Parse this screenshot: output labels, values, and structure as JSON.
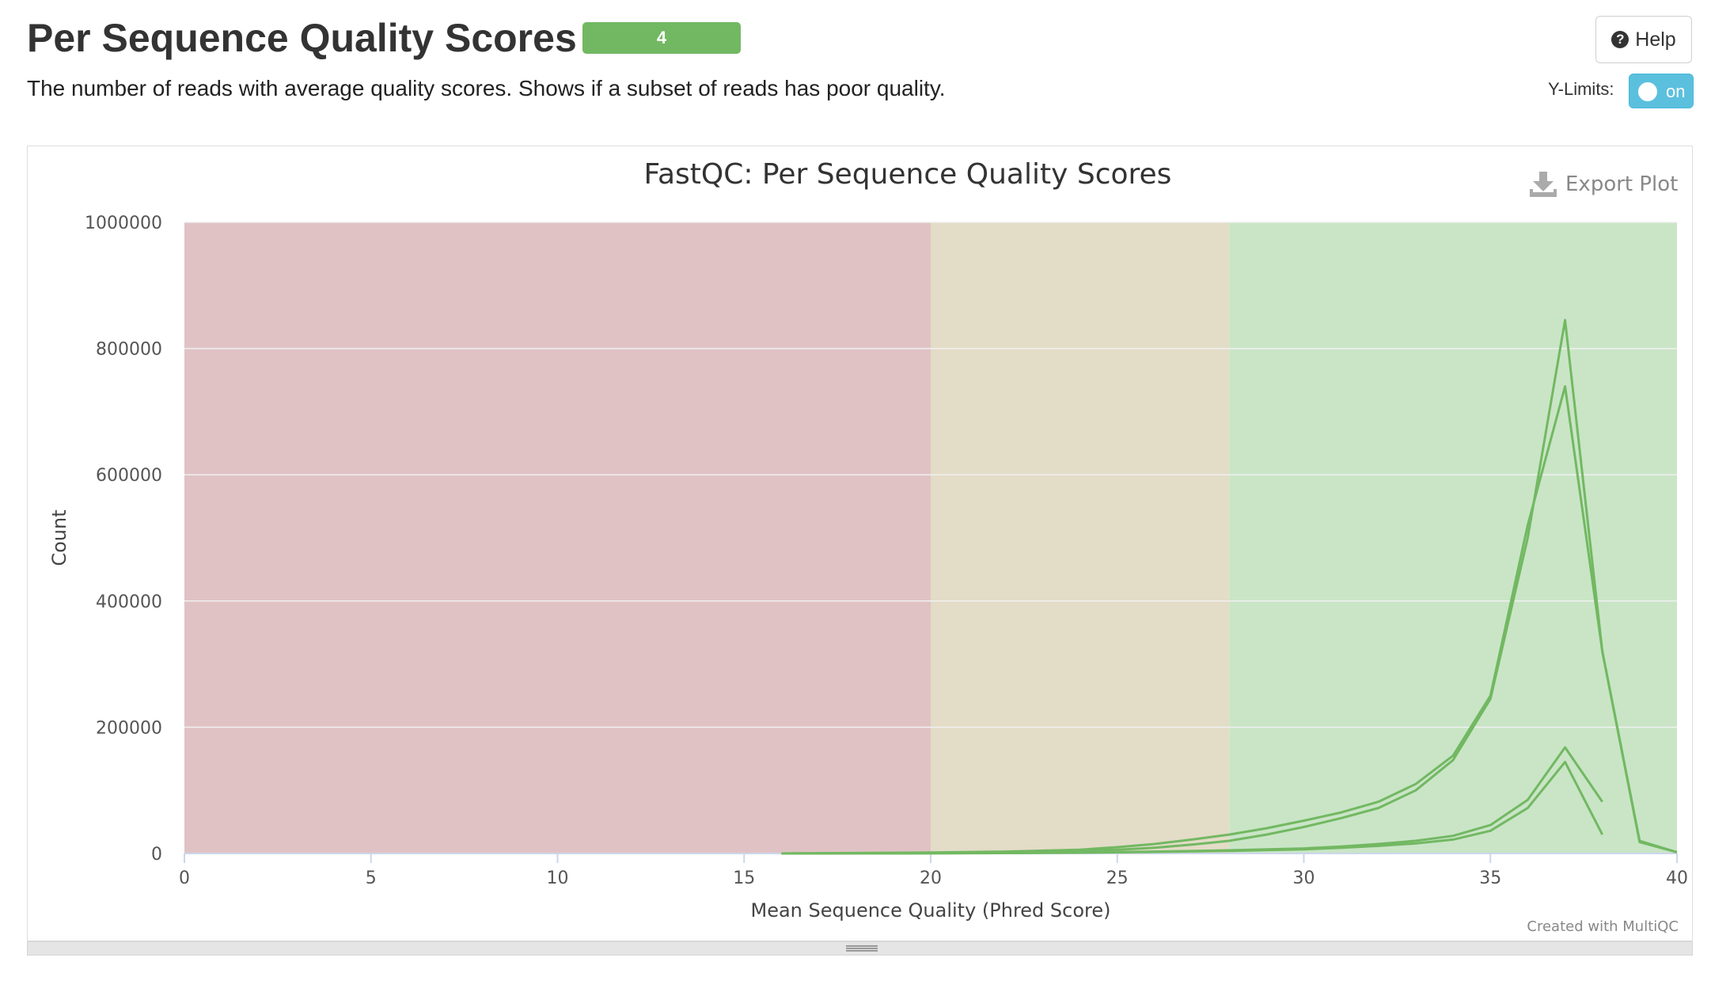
{
  "header": {
    "title": "Per Sequence Quality Scores",
    "badge": "4",
    "description": "The number of reads with average quality scores. Shows if a subset of reads has poor quality.",
    "help_label": "Help",
    "help_icon": "question-circle-icon",
    "ylimits_label": "Y-Limits:",
    "ylimits_toggle": "on"
  },
  "plot": {
    "export_label": "Export Plot",
    "export_icon": "download-icon",
    "credit": "Created with MultiQC"
  },
  "colors": {
    "badge": "#72b862",
    "toggle": "#5bc0de",
    "zone_fail": "#e0c2c5",
    "zone_warn": "#e3dcc7",
    "zone_pass": "#c9e5c6",
    "line": "#72b862"
  },
  "chart_data": {
    "type": "line",
    "title": "FastQC: Per Sequence Quality Scores",
    "xlabel": "Mean Sequence Quality (Phred Score)",
    "ylabel": "Count",
    "xlim": [
      0,
      40
    ],
    "ylim": [
      0,
      1000000
    ],
    "xticks": [
      0,
      5,
      10,
      15,
      20,
      25,
      30,
      35,
      40
    ],
    "yticks": [
      0,
      200000,
      400000,
      600000,
      800000,
      1000000
    ],
    "grid": true,
    "bands": [
      {
        "from": 0,
        "to": 20,
        "color": "#e0c2c5"
      },
      {
        "from": 20,
        "to": 28,
        "color": "#e3dcc7"
      },
      {
        "from": 28,
        "to": 40,
        "color": "#c9e5c6"
      }
    ],
    "series": [
      {
        "x": [
          16,
          18,
          20,
          22,
          24,
          25,
          26,
          27,
          28,
          29,
          30,
          31,
          32,
          33,
          34,
          35,
          36,
          37,
          38,
          39,
          40
        ],
        "values": [
          0,
          500,
          1000,
          2000,
          4000,
          6000,
          9000,
          14000,
          20000,
          30000,
          42000,
          56000,
          72000,
          100000,
          148000,
          245000,
          500000,
          845000,
          320000,
          18000,
          2000
        ]
      },
      {
        "x": [
          16,
          18,
          20,
          22,
          24,
          25,
          26,
          27,
          28,
          29,
          30,
          31,
          32,
          33,
          34,
          35,
          36,
          37,
          38,
          39,
          40
        ],
        "values": [
          0,
          800,
          1500,
          3000,
          6000,
          10000,
          15000,
          22000,
          30000,
          40000,
          52000,
          65000,
          82000,
          110000,
          155000,
          250000,
          520000,
          740000,
          320000,
          20000,
          2000
        ]
      },
      {
        "x": [
          16,
          18,
          20,
          22,
          24,
          26,
          28,
          30,
          31,
          32,
          33,
          34,
          35,
          36,
          37,
          38
        ],
        "values": [
          0,
          200,
          400,
          800,
          1500,
          3000,
          5000,
          8000,
          11000,
          15000,
          20000,
          28000,
          45000,
          85000,
          168000,
          82000
        ]
      },
      {
        "x": [
          16,
          18,
          20,
          22,
          24,
          26,
          28,
          30,
          31,
          32,
          33,
          34,
          35,
          36,
          37,
          38
        ],
        "values": [
          0,
          150,
          300,
          600,
          1200,
          2500,
          4000,
          6500,
          9000,
          12000,
          16000,
          22000,
          36000,
          72000,
          145000,
          30000
        ]
      }
    ]
  }
}
